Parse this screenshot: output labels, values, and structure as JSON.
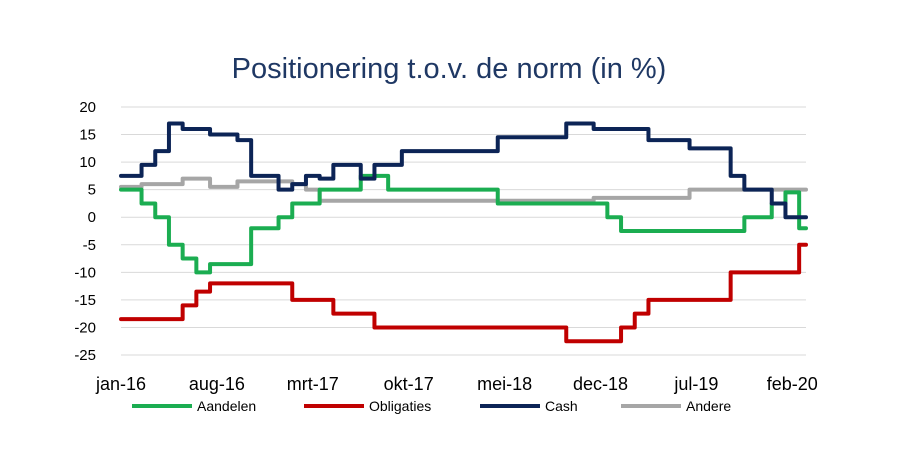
{
  "chart_data": {
    "type": "line",
    "title": "Positionering t.o.v. de norm (in %)",
    "xlabel": "",
    "ylabel": "",
    "ylim": [
      -25,
      20
    ],
    "yticks": [
      20,
      15,
      10,
      5,
      0,
      -5,
      -10,
      -15,
      -20,
      -25
    ],
    "grid": true,
    "legend": "bottom",
    "x_tick_labels": [
      "jan-16",
      "aug-16",
      "mrt-17",
      "okt-17",
      "mei-18",
      "dec-18",
      "jul-19",
      "feb-20"
    ],
    "x": [
      "2016-01",
      "2016-02",
      "2016-03",
      "2016-04",
      "2016-05",
      "2016-06",
      "2016-07",
      "2016-08",
      "2016-09",
      "2016-10",
      "2016-11",
      "2016-12",
      "2017-01",
      "2017-02",
      "2017-03",
      "2017-04",
      "2017-05",
      "2017-06",
      "2017-07",
      "2017-08",
      "2017-09",
      "2017-10",
      "2017-11",
      "2017-12",
      "2018-01",
      "2018-02",
      "2018-03",
      "2018-04",
      "2018-05",
      "2018-06",
      "2018-07",
      "2018-08",
      "2018-09",
      "2018-10",
      "2018-11",
      "2018-12",
      "2019-01",
      "2019-02",
      "2019-03",
      "2019-04",
      "2019-05",
      "2019-06",
      "2019-07",
      "2019-08",
      "2019-09",
      "2019-10",
      "2019-11",
      "2019-12",
      "2020-01",
      "2020-02",
      "2020-03"
    ],
    "series": [
      {
        "name": "Aandelen",
        "color": "#1bad51",
        "values": [
          5,
          5,
          2.5,
          0,
          -5,
          -7.5,
          -10,
          -8.5,
          -8.5,
          -8.5,
          -2,
          -2,
          0,
          2.5,
          2.5,
          5,
          5,
          5,
          7.5,
          7.5,
          5,
          5,
          5,
          5,
          5,
          5,
          5,
          5,
          2.5,
          2.5,
          2.5,
          2.5,
          2.5,
          2.5,
          2.5,
          2.5,
          0,
          -2.5,
          -2.5,
          -2.5,
          -2.5,
          -2.5,
          -2.5,
          -2.5,
          -2.5,
          -2.5,
          0,
          0,
          2.5,
          4.5,
          -2
        ]
      },
      {
        "name": "Obligaties",
        "color": "#c00000",
        "values": [
          -18.5,
          -18.5,
          -18.5,
          -18.5,
          -18.5,
          -16,
          -13.5,
          -12,
          -12,
          -12,
          -12,
          -12,
          -12,
          -15,
          -15,
          -15,
          -17.5,
          -17.5,
          -17.5,
          -20,
          -20,
          -20,
          -20,
          -20,
          -20,
          -20,
          -20,
          -20,
          -20,
          -20,
          -20,
          -20,
          -20,
          -22.5,
          -22.5,
          -22.5,
          -22.5,
          -20,
          -17.5,
          -15,
          -15,
          -15,
          -15,
          -15,
          -15,
          -10,
          -10,
          -10,
          -10,
          -10,
          -5
        ]
      },
      {
        "name": "Cash",
        "color": "#0c2456",
        "values": [
          7.5,
          7.5,
          9.5,
          12,
          17,
          16,
          16,
          15,
          15,
          14,
          7.5,
          7.5,
          5,
          6,
          7.5,
          7,
          9.5,
          9.5,
          7,
          9.5,
          9.5,
          12,
          12,
          12,
          12,
          12,
          12,
          12,
          14.5,
          14.5,
          14.5,
          14.5,
          14.5,
          17,
          17,
          16,
          16,
          16,
          16,
          14,
          14,
          14,
          12.5,
          12.5,
          12.5,
          7.5,
          5,
          5,
          2.5,
          0,
          0
        ]
      },
      {
        "name": "Andere",
        "color": "#a6a6a6",
        "values": [
          5.5,
          5.5,
          6,
          6,
          6,
          7,
          7,
          5.5,
          5.5,
          6.5,
          6.5,
          6.5,
          6.5,
          6,
          5,
          3,
          3,
          3,
          3,
          3,
          3,
          3,
          3,
          3,
          3,
          3,
          3,
          3,
          3,
          3,
          3,
          3,
          3,
          3,
          3,
          3.5,
          3.5,
          3.5,
          3.5,
          3.5,
          3.5,
          3.5,
          5,
          5,
          5,
          5,
          5,
          5,
          5,
          5,
          5
        ]
      }
    ]
  }
}
